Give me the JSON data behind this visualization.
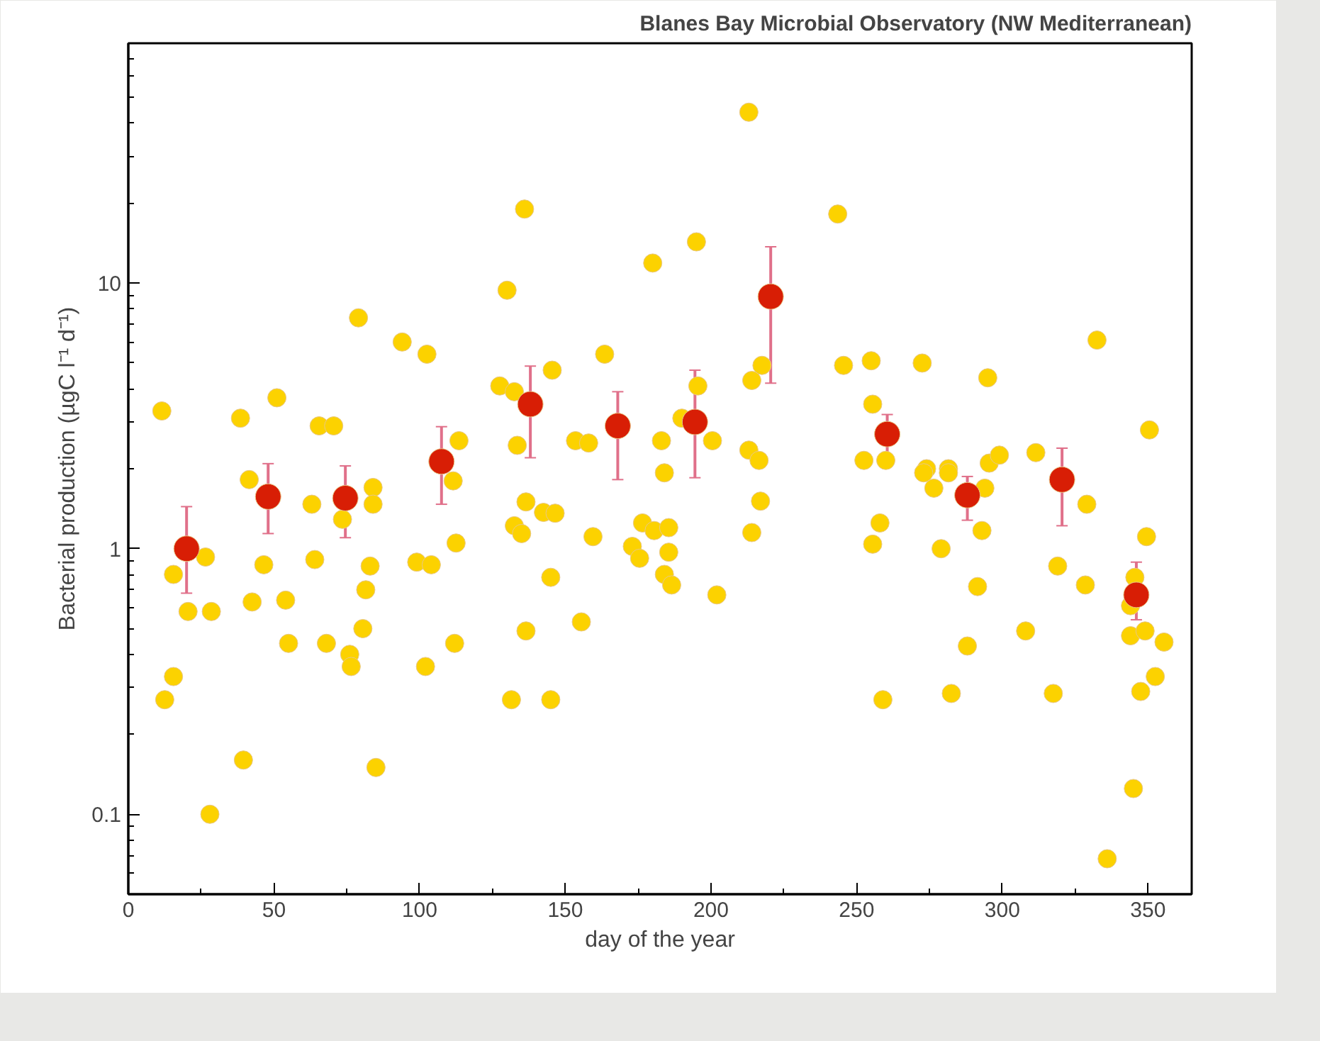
{
  "chart_data": {
    "type": "scatter",
    "title": "Blanes Bay Microbial Observatory (NW Mediterranean)",
    "xlabel": "day of the year",
    "ylabel": "Bacterial production (µgC l⁻¹ d⁻¹)",
    "log": "y",
    "grid": false,
    "marker": "circle",
    "xlim": [
      0,
      365
    ],
    "ylim": [
      0.05,
      80
    ],
    "xticks": [
      0,
      50,
      100,
      150,
      200,
      250,
      300,
      350
    ],
    "yticks": [
      0.1,
      1,
      10
    ],
    "series": [
      {
        "color": "#fcd200",
        "x": [
          11.5,
          38.5,
          51,
          65.5,
          70.5,
          79,
          94,
          102.5,
          113.5,
          127.5,
          132.5,
          130,
          136,
          133.5,
          145.5,
          153.5,
          158,
          163.5,
          180,
          183,
          195,
          213,
          243.5,
          195.5,
          200.5,
          190,
          217.5,
          214,
          245.5,
          255,
          272.5,
          295,
          332.5,
          255.5,
          213,
          216.5,
          252.5,
          260,
          274,
          281.5,
          295.5,
          299,
          311.5,
          350.5,
          41.5,
          63,
          73.5,
          84,
          84,
          111.5,
          184,
          26.5,
          15.5,
          20.5,
          28.5,
          46.5,
          42.5,
          54,
          64,
          83,
          81.5,
          55,
          68,
          76,
          76.5,
          80.5,
          99,
          104,
          112.5,
          102,
          112,
          132.5,
          135,
          136.5,
          142.5,
          146.5,
          159.5,
          145,
          136.5,
          155.5,
          176.5,
          180.5,
          173,
          175.5,
          12.5,
          15.5,
          131.5,
          145,
          39.5,
          85,
          28,
          217,
          214,
          185.5,
          185.5,
          184,
          186.5,
          202,
          258,
          255.5,
          259,
          273,
          281.5,
          276.5,
          294,
          279,
          293,
          291.5,
          288,
          282.5,
          329,
          349.5,
          319,
          328.5,
          308,
          317.5,
          345.5,
          344,
          344,
          349,
          355.5,
          352.5,
          347.5,
          345,
          336
        ],
        "values": [
          3.3,
          3.1,
          3.7,
          2.9,
          2.9,
          7.4,
          6.0,
          5.4,
          2.55,
          4.1,
          3.9,
          9.4,
          19,
          2.45,
          4.7,
          2.55,
          2.5,
          5.4,
          11.9,
          2.55,
          14.3,
          44,
          18.2,
          4.1,
          2.55,
          3.1,
          4.9,
          4.3,
          4.9,
          5.1,
          5.0,
          4.4,
          6.1,
          3.5,
          2.35,
          2.15,
          2.15,
          2.15,
          2.0,
          2.0,
          2.1,
          2.25,
          2.3,
          2.8,
          1.82,
          1.47,
          1.29,
          1.7,
          1.47,
          1.8,
          1.93,
          0.93,
          0.8,
          0.58,
          0.58,
          0.87,
          0.63,
          0.64,
          0.91,
          0.86,
          0.7,
          0.44,
          0.44,
          0.4,
          0.36,
          0.5,
          0.89,
          0.87,
          1.05,
          0.36,
          0.44,
          1.22,
          1.14,
          1.5,
          1.37,
          1.36,
          1.11,
          0.78,
          0.49,
          0.53,
          1.25,
          1.17,
          1.02,
          0.92,
          0.27,
          0.33,
          0.27,
          0.27,
          0.16,
          0.15,
          0.1,
          1.51,
          1.15,
          1.2,
          0.97,
          0.8,
          0.73,
          0.67,
          1.25,
          1.04,
          0.27,
          1.93,
          1.93,
          1.69,
          1.69,
          1.0,
          1.17,
          0.72,
          0.43,
          0.285,
          1.47,
          1.11,
          0.86,
          0.73,
          0.49,
          0.285,
          0.78,
          0.61,
          0.47,
          0.49,
          0.445,
          0.33,
          0.29,
          0.125,
          0.068
        ]
      },
      {
        "color": "#d81e05",
        "x": [
          20,
          48,
          74.5,
          107.5,
          138,
          168,
          194.5,
          220.5,
          260.5,
          288,
          320.5,
          346
        ],
        "values": [
          1.0,
          1.57,
          1.55,
          2.13,
          3.5,
          2.9,
          3.0,
          8.9,
          2.7,
          1.59,
          1.82,
          0.67
        ],
        "errors": [
          [
            0.68,
            1.44
          ],
          [
            1.14,
            2.09
          ],
          [
            1.1,
            2.05
          ],
          [
            1.47,
            2.88
          ],
          [
            2.2,
            4.87
          ],
          [
            1.82,
            3.9
          ],
          [
            1.85,
            4.7
          ],
          [
            4.2,
            13.7
          ],
          [
            2.2,
            3.2
          ],
          [
            1.28,
            1.87
          ],
          [
            1.22,
            2.39
          ],
          [
            0.54,
            0.89
          ]
        ]
      }
    ]
  }
}
